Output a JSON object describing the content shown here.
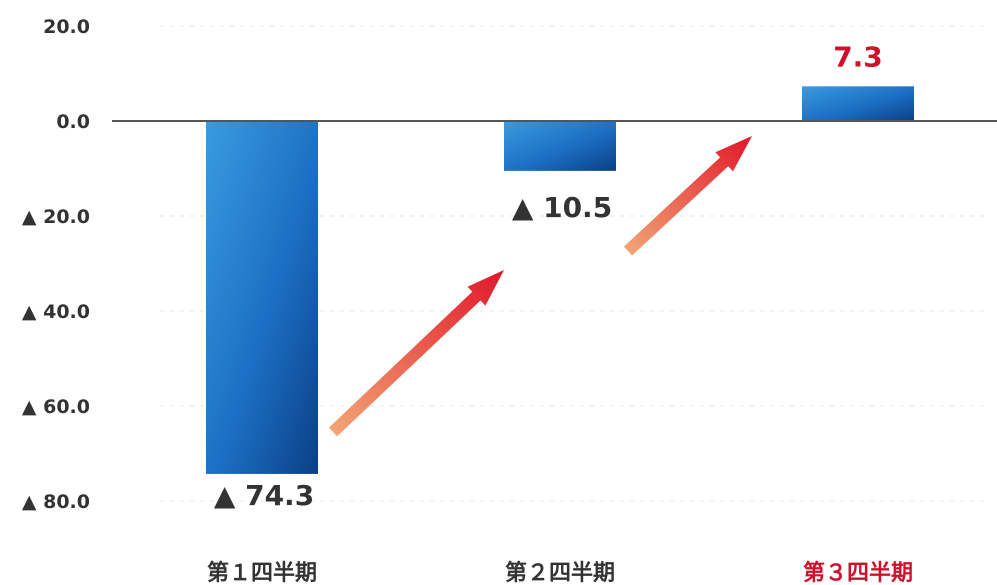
{
  "chart_data": {
    "type": "bar",
    "categories": [
      "第１四半期",
      "第２四半期",
      "第３四半期"
    ],
    "values": [
      -74.3,
      -10.5,
      7.3
    ],
    "value_labels": [
      "▲ 74.3",
      "▲ 10.5",
      "7.3"
    ],
    "tick_values": [
      20,
      0,
      -20,
      -40,
      -60,
      -80
    ],
    "tick_labels": [
      "20.0",
      "0.0",
      "▲ 20.0",
      "▲ 40.0",
      "▲ 60.0",
      "▲ 80.0"
    ],
    "ylim": [
      -80,
      20
    ],
    "grid": true,
    "title": "",
    "xlabel": "",
    "ylabel": "",
    "highlight_category": "第３四半期",
    "colors": {
      "bar_light": "#3a9be0",
      "bar_dark": "#0b3f86",
      "text": "#333333",
      "highlight_text": "#d0102a",
      "arrow_start": "#f3a877",
      "arrow_end": "#e0182a",
      "zero_line": "#555555",
      "grid": "#e6e6e6"
    }
  }
}
